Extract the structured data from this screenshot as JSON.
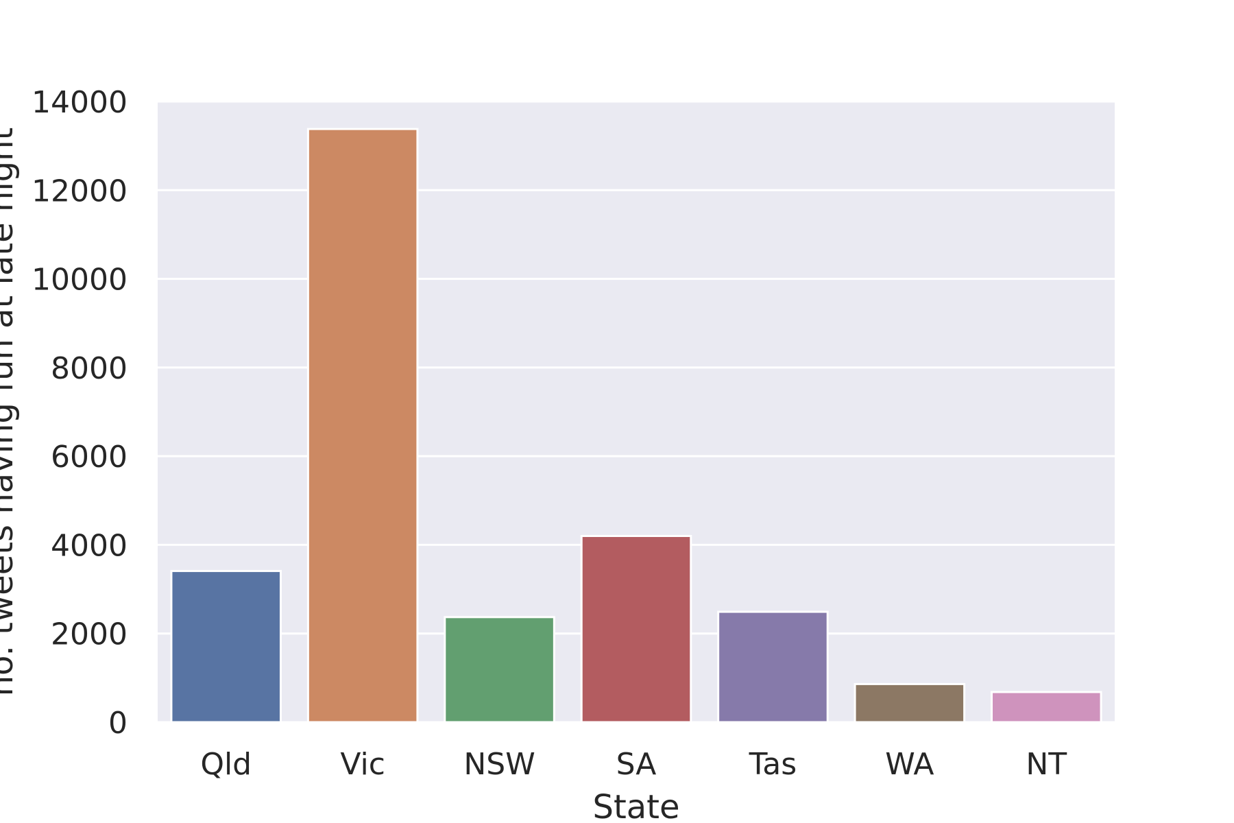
{
  "chart_data": {
    "type": "bar",
    "title": "",
    "xlabel": "State",
    "ylabel": "no. tweets having fun at late night",
    "categories": [
      "Qld",
      "Vic",
      "NSW",
      "SA",
      "Tas",
      "WA",
      "NT"
    ],
    "values": [
      3410,
      13380,
      2370,
      4200,
      2490,
      860,
      680
    ],
    "ylim": [
      0,
      14000
    ],
    "yticks": [
      0,
      2000,
      4000,
      6000,
      8000,
      10000,
      12000,
      14000
    ],
    "ytick_labels": [
      "0",
      "2000",
      "4000",
      "6000",
      "8000",
      "10000",
      "12000",
      "14000"
    ],
    "grid": true,
    "legend": false,
    "colors": [
      "#5874a3",
      "#cc8963",
      "#629f70",
      "#b35c60",
      "#867aaa",
      "#8c7864",
      "#cf93bd"
    ],
    "plot_background": "#eaeaf2",
    "grid_color": "#ffffff",
    "bar_edge_color": "#ffffff"
  }
}
